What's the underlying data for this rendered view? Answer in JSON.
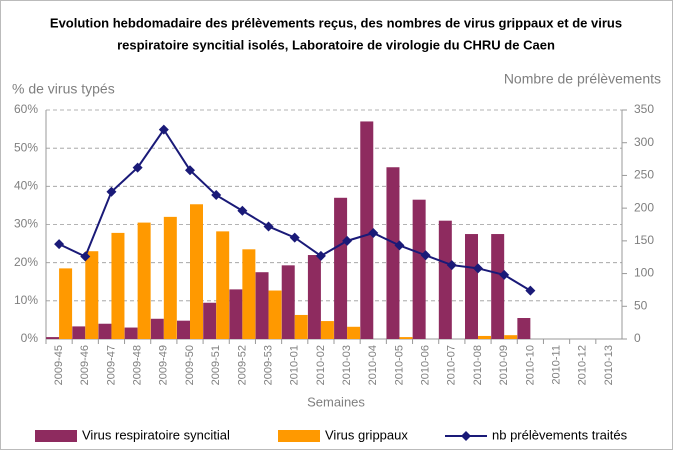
{
  "chart_data": {
    "type": "bar-line",
    "title": [
      "Evolution hebdomadaire des prélèvements reçus, des nombres de virus grippaux et de virus",
      "respiratoire syncitial isolés, Laboratoire de virologie du CHRU de Caen"
    ],
    "y_label": "% de virus typés",
    "y2_label": "Nombre de prélèvements",
    "x_label": "Semaines",
    "categories": [
      "2009-45",
      "2009-46",
      "2009-47",
      "2009-48",
      "2009-49",
      "2009-50",
      "2009-51",
      "2009-52",
      "2009-53",
      "2010-01",
      "2010-02",
      "2010-03",
      "2010-04",
      "2010-05",
      "2010-06",
      "2010-07",
      "2010-08",
      "2010-09",
      "2010-10",
      "2010-11",
      "2010-12",
      "2010-13"
    ],
    "series": [
      {
        "name": "Virus respiratoire syncitial",
        "color": "#8e2b5f",
        "type": "bar",
        "values": [
          0.5,
          3.3,
          4,
          3,
          5.3,
          4.8,
          9.5,
          13,
          17.5,
          19.3,
          22,
          37,
          57,
          45,
          36.5,
          31,
          27.5,
          27.5,
          5.5,
          0,
          0,
          0
        ]
      },
      {
        "name": "Virus grippaux",
        "color": "#ff9900",
        "type": "bar",
        "values": [
          18.5,
          23,
          27.8,
          30.5,
          32,
          35.3,
          28.2,
          23.5,
          12.7,
          6.3,
          4.7,
          3.2,
          0,
          0.5,
          0,
          0,
          0.8,
          1,
          0,
          0,
          0,
          0
        ]
      },
      {
        "name": "nb prélèvements traités",
        "color": "#1a1a78",
        "type": "line",
        "axis": "y2",
        "values": [
          145,
          126,
          225,
          262,
          320,
          258,
          220,
          196,
          172,
          155,
          127,
          150,
          162,
          143,
          128,
          113,
          108,
          98,
          74,
          null,
          null,
          null
        ]
      }
    ],
    "ylim": [
      0,
      60
    ],
    "yticks": [
      {
        "value": 0,
        "label": "0%"
      },
      {
        "value": 10,
        "label": "10%"
      },
      {
        "value": 20,
        "label": "20%"
      },
      {
        "value": 30,
        "label": "30%"
      },
      {
        "value": 40,
        "label": "40%"
      },
      {
        "value": 50,
        "label": "50%"
      },
      {
        "value": 60,
        "label": "60%"
      }
    ],
    "y2lim": [
      0,
      350
    ],
    "y2ticks": [
      0,
      50,
      100,
      150,
      200,
      250,
      300,
      350
    ],
    "grid": true,
    "legend": "bottom"
  }
}
